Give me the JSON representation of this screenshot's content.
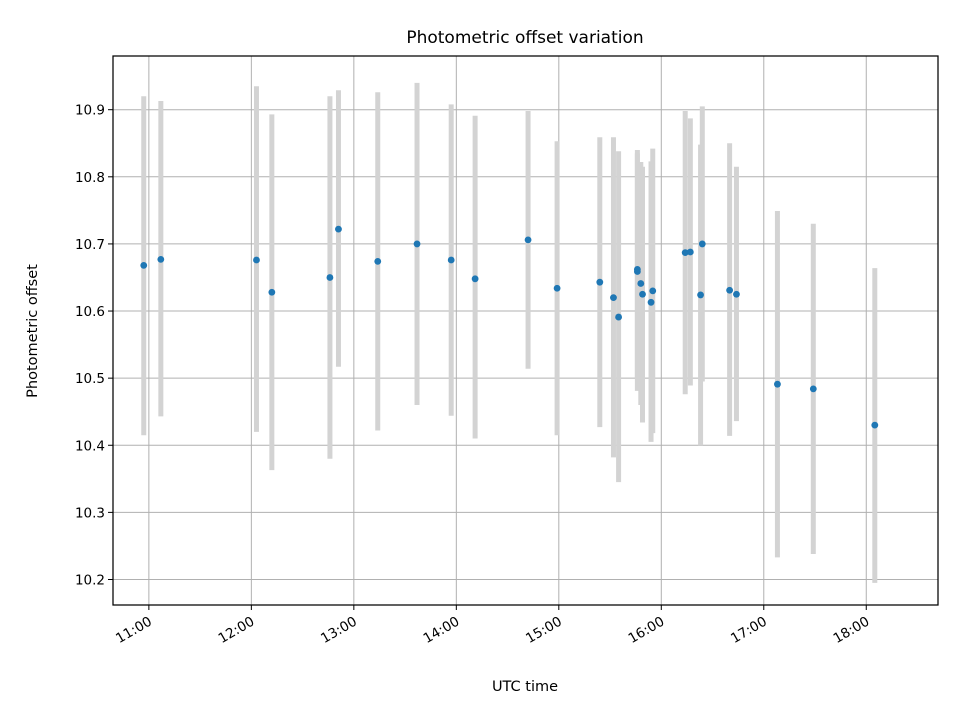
{
  "chart_data": {
    "type": "scatter",
    "title": "Photometric offset variation",
    "xlabel": "UTC time",
    "ylabel": "Photometric offset",
    "x_axis": "time",
    "xlim": [
      "10:39",
      "18:42"
    ],
    "ylim": [
      10.162,
      10.98
    ],
    "x_ticks": [
      "11:00",
      "12:00",
      "13:00",
      "14:00",
      "15:00",
      "16:00",
      "17:00",
      "18:00"
    ],
    "y_ticks": [
      10.2,
      10.3,
      10.4,
      10.5,
      10.6,
      10.7,
      10.8,
      10.9
    ],
    "grid": true,
    "legend": "none",
    "colors": {
      "point": "#1f77b4",
      "errorbar": "#d3d3d3",
      "grid": "#b0b0b0"
    },
    "points": [
      {
        "x": "10:57",
        "y": 10.668,
        "err_low": 10.415,
        "err_high": 10.92
      },
      {
        "x": "11:07",
        "y": 10.677,
        "err_low": 10.443,
        "err_high": 10.913
      },
      {
        "x": "12:03",
        "y": 10.676,
        "err_low": 10.42,
        "err_high": 10.935
      },
      {
        "x": "12:12",
        "y": 10.628,
        "err_low": 10.363,
        "err_high": 10.893
      },
      {
        "x": "12:46",
        "y": 10.65,
        "err_low": 10.38,
        "err_high": 10.92
      },
      {
        "x": "12:51",
        "y": 10.722,
        "err_low": 10.517,
        "err_high": 10.929
      },
      {
        "x": "13:14",
        "y": 10.674,
        "err_low": 10.422,
        "err_high": 10.926
      },
      {
        "x": "13:37",
        "y": 10.7,
        "err_low": 10.46,
        "err_high": 10.94
      },
      {
        "x": "13:57",
        "y": 10.676,
        "err_low": 10.444,
        "err_high": 10.908
      },
      {
        "x": "14:11",
        "y": 10.648,
        "err_low": 10.41,
        "err_high": 10.891
      },
      {
        "x": "14:42",
        "y": 10.706,
        "err_low": 10.514,
        "err_high": 10.898
      },
      {
        "x": "14:59",
        "y": 10.634,
        "err_low": 10.415,
        "err_high": 10.853
      },
      {
        "x": "15:24",
        "y": 10.643,
        "err_low": 10.427,
        "err_high": 10.859
      },
      {
        "x": "15:32",
        "y": 10.62,
        "err_low": 10.382,
        "err_high": 10.859
      },
      {
        "x": "15:35",
        "y": 10.591,
        "err_low": 10.345,
        "err_high": 10.838
      },
      {
        "x": "15:46",
        "y": 10.659,
        "err_low": 10.481,
        "err_high": 10.84
      },
      {
        "x": "15:46",
        "y": 10.662,
        "err_low": 10.5,
        "err_high": 10.835
      },
      {
        "x": "15:48",
        "y": 10.641,
        "err_low": 10.46,
        "err_high": 10.822
      },
      {
        "x": "15:49",
        "y": 10.625,
        "err_low": 10.434,
        "err_high": 10.815
      },
      {
        "x": "15:54",
        "y": 10.613,
        "err_low": 10.405,
        "err_high": 10.823
      },
      {
        "x": "15:55",
        "y": 10.63,
        "err_low": 10.418,
        "err_high": 10.842
      },
      {
        "x": "16:14",
        "y": 10.687,
        "err_low": 10.476,
        "err_high": 10.898
      },
      {
        "x": "16:17",
        "y": 10.688,
        "err_low": 10.489,
        "err_high": 10.887
      },
      {
        "x": "16:23",
        "y": 10.624,
        "err_low": 10.4,
        "err_high": 10.848
      },
      {
        "x": "16:24",
        "y": 10.7,
        "err_low": 10.495,
        "err_high": 10.905
      },
      {
        "x": "16:40",
        "y": 10.631,
        "err_low": 10.414,
        "err_high": 10.85
      },
      {
        "x": "16:44",
        "y": 10.625,
        "err_low": 10.436,
        "err_high": 10.815
      },
      {
        "x": "17:08",
        "y": 10.491,
        "err_low": 10.233,
        "err_high": 10.749
      },
      {
        "x": "17:29",
        "y": 10.484,
        "err_low": 10.238,
        "err_high": 10.73
      },
      {
        "x": "18:05",
        "y": 10.43,
        "err_low": 10.195,
        "err_high": 10.664
      }
    ]
  }
}
